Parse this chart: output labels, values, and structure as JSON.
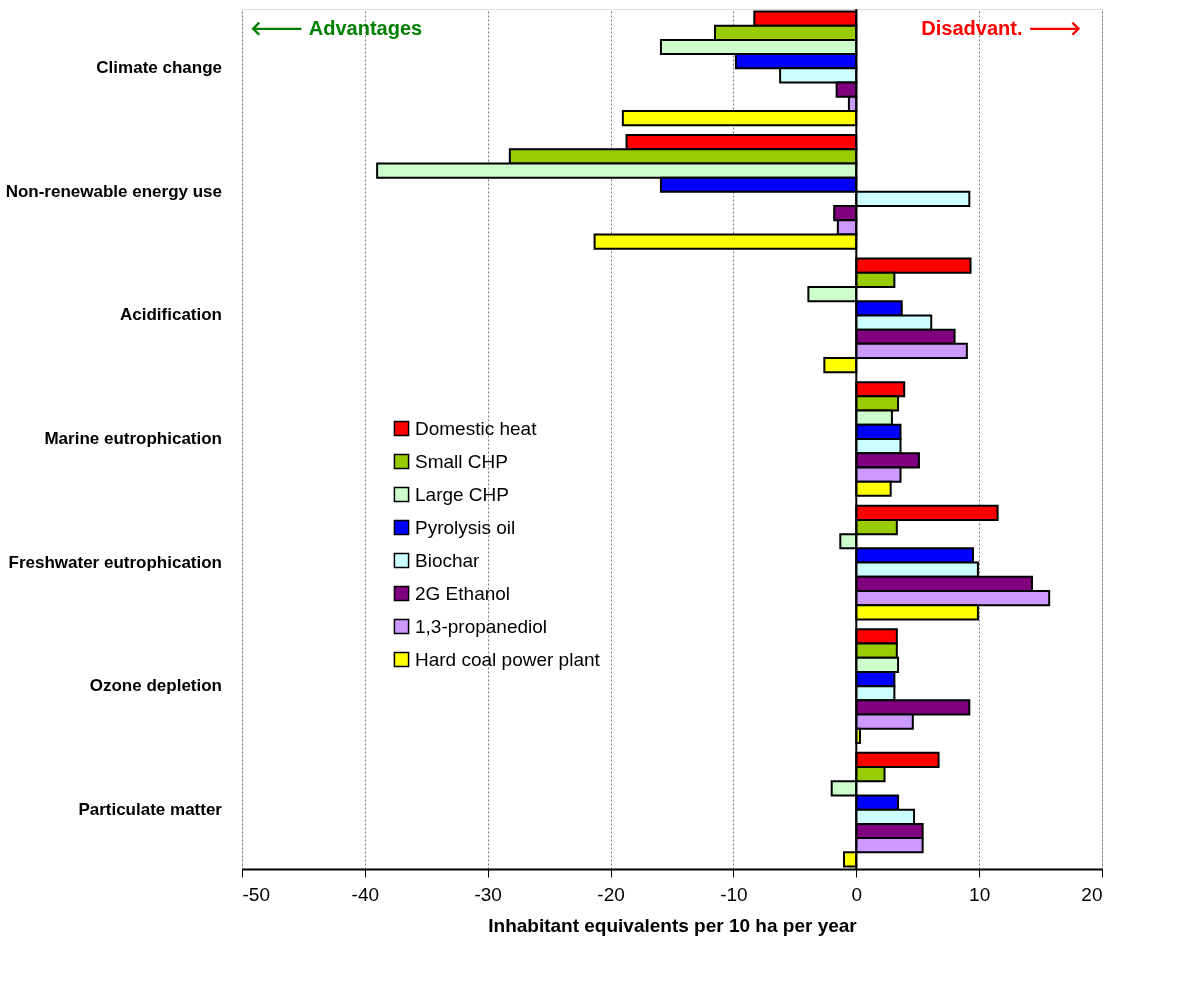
{
  "chart_data": {
    "type": "bar",
    "orientation": "horizontal",
    "xlabel": "Inhabitant equivalents per 10 ha per year",
    "categories": [
      "Climate change",
      "Non-renewable energy use",
      "Acidification",
      "Marine eutrophication",
      "Freshwater eutrophication",
      "Ozone depletion",
      "Particulate matter"
    ],
    "series": [
      {
        "name": "Domestic heat",
        "color": "#ff0000",
        "values": [
          -8.3,
          -18.7,
          9.3,
          3.9,
          11.5,
          3.3,
          6.7
        ]
      },
      {
        "name": "Small CHP",
        "color": "#99cc00",
        "values": [
          -11.5,
          -28.2,
          3.1,
          3.4,
          3.3,
          3.3,
          2.3
        ]
      },
      {
        "name": "Large CHP",
        "color": "#ccffcc",
        "values": [
          -15.9,
          -39.0,
          -3.9,
          2.9,
          -1.3,
          3.4,
          -2.0
        ]
      },
      {
        "name": "Pyrolysis oil",
        "color": "#0000ff",
        "values": [
          -9.8,
          -15.9,
          3.7,
          3.6,
          9.5,
          3.1,
          3.4
        ]
      },
      {
        "name": "Biochar",
        "color": "#ccffff",
        "values": [
          -6.2,
          9.2,
          6.1,
          3.6,
          9.9,
          3.1,
          4.7
        ]
      },
      {
        "name": "2G Ethanol",
        "color": "#800080",
        "values": [
          -1.6,
          -1.8,
          8.0,
          5.1,
          14.3,
          9.2,
          5.4
        ]
      },
      {
        "name": "1,3-propanediol",
        "color": "#cc99ff",
        "values": [
          -0.6,
          -1.5,
          9.0,
          3.6,
          15.7,
          4.6,
          5.4
        ]
      },
      {
        "name": "Hard coal power plant",
        "color": "#ffff00",
        "values": [
          -19.0,
          -21.3,
          -2.6,
          2.8,
          9.9,
          0.3,
          -1.0
        ]
      }
    ],
    "xlim": [
      -50,
      20
    ],
    "xticks": [
      -50,
      -40,
      -30,
      -20,
      -10,
      0,
      10,
      20
    ],
    "grid": "x",
    "legend": "left",
    "ref_lines": [
      {
        "axis": "x",
        "value": 0
      }
    ],
    "annotations": [
      "🡐 Advantages",
      "Disadvant. 🡒"
    ]
  }
}
